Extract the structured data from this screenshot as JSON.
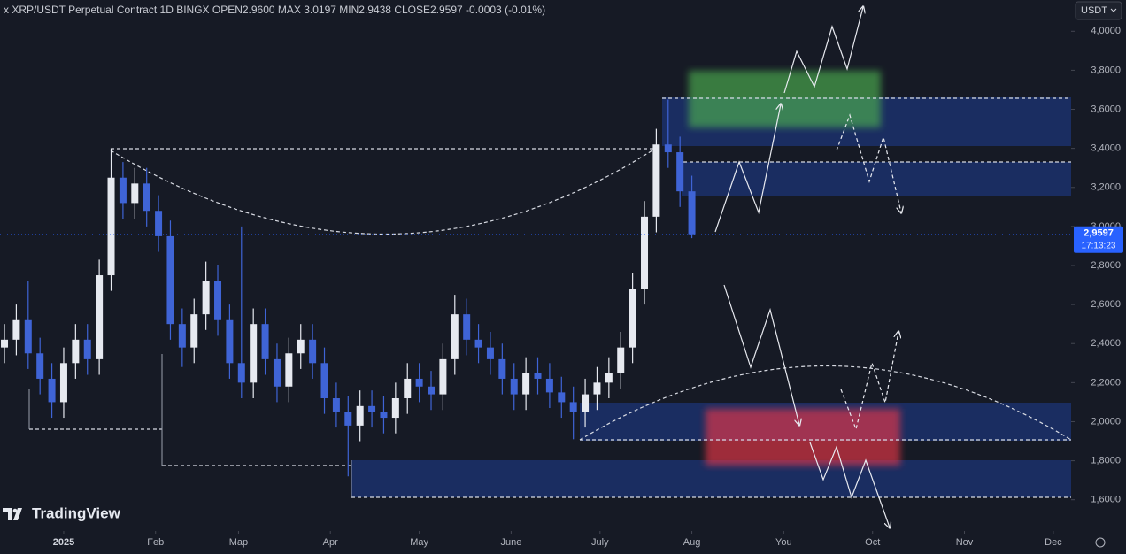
{
  "header": {
    "title": "x XRP/USDT Perpetual Contract 1D BINGX OPEN2.9600 MAX 3.0197 MIN2.9438 CLOSE2.9597 -0.0003 (-0.01%)",
    "currency": "USDT",
    "logo": "TradingView"
  },
  "chart_data": {
    "type": "candlestick",
    "x": [
      -20,
      -16,
      -12,
      -8,
      -4,
      0,
      4,
      8,
      12,
      16,
      20,
      24,
      28,
      32,
      36,
      40,
      44,
      48,
      52,
      56,
      60,
      64,
      68,
      72,
      76,
      80,
      84,
      88,
      92,
      96,
      100,
      104,
      108,
      112,
      116,
      120,
      124,
      128,
      132,
      136,
      140,
      144,
      148,
      152,
      156,
      160,
      164,
      168,
      172,
      176,
      180,
      184,
      188,
      192,
      196,
      200,
      204,
      208,
      212
    ],
    "open": [
      2.38,
      2.42,
      2.52,
      2.35,
      2.22,
      2.1,
      2.3,
      2.42,
      2.32,
      2.75,
      3.25,
      3.12,
      3.22,
      3.08,
      2.95,
      2.5,
      2.38,
      2.55,
      2.72,
      2.52,
      2.3,
      2.2,
      2.5,
      2.32,
      2.18,
      2.35,
      2.42,
      2.3,
      2.12,
      2.05,
      1.98,
      2.08,
      2.05,
      2.02,
      2.12,
      2.22,
      2.18,
      2.14,
      2.32,
      2.55,
      2.42,
      2.38,
      2.32,
      2.22,
      2.14,
      2.25,
      2.22,
      2.15,
      2.1,
      2.05,
      2.14,
      2.2,
      2.25,
      2.38,
      2.68,
      3.05,
      3.42,
      3.38,
      3.18
    ],
    "high": [
      2.5,
      2.6,
      2.72,
      2.43,
      2.3,
      2.38,
      2.5,
      2.5,
      2.83,
      3.4,
      3.33,
      3.3,
      3.3,
      3.16,
      3.03,
      2.58,
      2.63,
      2.82,
      2.8,
      2.6,
      3.0,
      2.58,
      2.58,
      2.4,
      2.43,
      2.5,
      2.5,
      2.38,
      2.2,
      2.13,
      2.16,
      2.16,
      2.13,
      2.2,
      2.3,
      2.3,
      2.26,
      2.4,
      2.65,
      2.63,
      2.5,
      2.46,
      2.4,
      2.3,
      2.33,
      2.33,
      2.3,
      2.23,
      2.18,
      2.22,
      2.28,
      2.33,
      2.46,
      2.76,
      3.13,
      3.5,
      3.65,
      3.46,
      3.26
    ],
    "low": [
      2.3,
      2.34,
      2.27,
      2.14,
      2.02,
      2.02,
      2.22,
      2.24,
      2.24,
      2.67,
      3.04,
      3.04,
      3.0,
      2.87,
      2.42,
      2.28,
      2.3,
      2.47,
      2.44,
      2.22,
      2.12,
      2.12,
      2.24,
      2.1,
      2.1,
      2.27,
      2.22,
      2.04,
      1.97,
      1.72,
      1.9,
      1.97,
      1.94,
      1.94,
      2.04,
      2.1,
      2.06,
      2.06,
      2.24,
      2.34,
      2.3,
      2.24,
      2.14,
      2.06,
      2.06,
      2.14,
      2.07,
      2.02,
      1.91,
      1.97,
      2.06,
      2.12,
      2.17,
      2.3,
      2.6,
      2.97,
      3.3,
      3.1,
      2.94
    ],
    "close": [
      2.42,
      2.52,
      2.35,
      2.22,
      2.1,
      2.3,
      2.42,
      2.32,
      2.75,
      3.25,
      3.12,
      3.22,
      3.08,
      2.95,
      2.5,
      2.38,
      2.55,
      2.72,
      2.52,
      2.3,
      2.2,
      2.5,
      2.32,
      2.18,
      2.35,
      2.42,
      2.3,
      2.12,
      2.05,
      1.98,
      2.08,
      2.05,
      2.02,
      2.12,
      2.22,
      2.18,
      2.14,
      2.32,
      2.55,
      2.42,
      2.38,
      2.32,
      2.22,
      2.14,
      2.25,
      2.22,
      2.15,
      2.1,
      2.05,
      2.14,
      2.2,
      2.25,
      2.38,
      2.68,
      3.05,
      3.42,
      3.38,
      3.18,
      2.96
    ],
    "up_color": "#e6e9f0",
    "down_color": "#3f64d6",
    "xlim": [
      -21.5,
      340
    ],
    "xticks": [
      {
        "value": 0,
        "label": "2025"
      },
      {
        "value": 31,
        "label": "Feb"
      },
      {
        "value": 59,
        "label": "Map"
      },
      {
        "value": 90,
        "label": "Apr"
      },
      {
        "value": 120,
        "label": "May"
      },
      {
        "value": 151,
        "label": "June"
      },
      {
        "value": 181,
        "label": "July"
      },
      {
        "value": 212,
        "label": "Aug"
      },
      {
        "value": 243,
        "label": "You"
      },
      {
        "value": 273,
        "label": "Oct"
      },
      {
        "value": 304,
        "label": "Nov"
      },
      {
        "value": 334,
        "label": "Dec"
      }
    ],
    "ylim": [
      1.44,
      4.16
    ],
    "yticks": [
      {
        "value": 1.6,
        "label": "1,6000"
      },
      {
        "value": 1.8,
        "label": "1,8000"
      },
      {
        "value": 2.0,
        "label": "2,0000"
      },
      {
        "value": 2.2,
        "label": "2,2000"
      },
      {
        "value": 2.4,
        "label": "2,4000"
      },
      {
        "value": 2.6,
        "label": "2,6000"
      },
      {
        "value": 2.8,
        "label": "2,8000"
      },
      {
        "value": 3.0,
        "label": "3,0000"
      },
      {
        "value": 3.2,
        "label": "3,2000"
      },
      {
        "value": 3.4,
        "label": "3,4000"
      },
      {
        "value": 3.6,
        "label": "3,6000"
      },
      {
        "value": 3.8,
        "label": "3,8000"
      },
      {
        "value": 4.0,
        "label": "4,0000"
      }
    ],
    "last_price": {
      "value": 2.9597,
      "label": "2,9597"
    },
    "countdown": "17:13:23"
  }
}
